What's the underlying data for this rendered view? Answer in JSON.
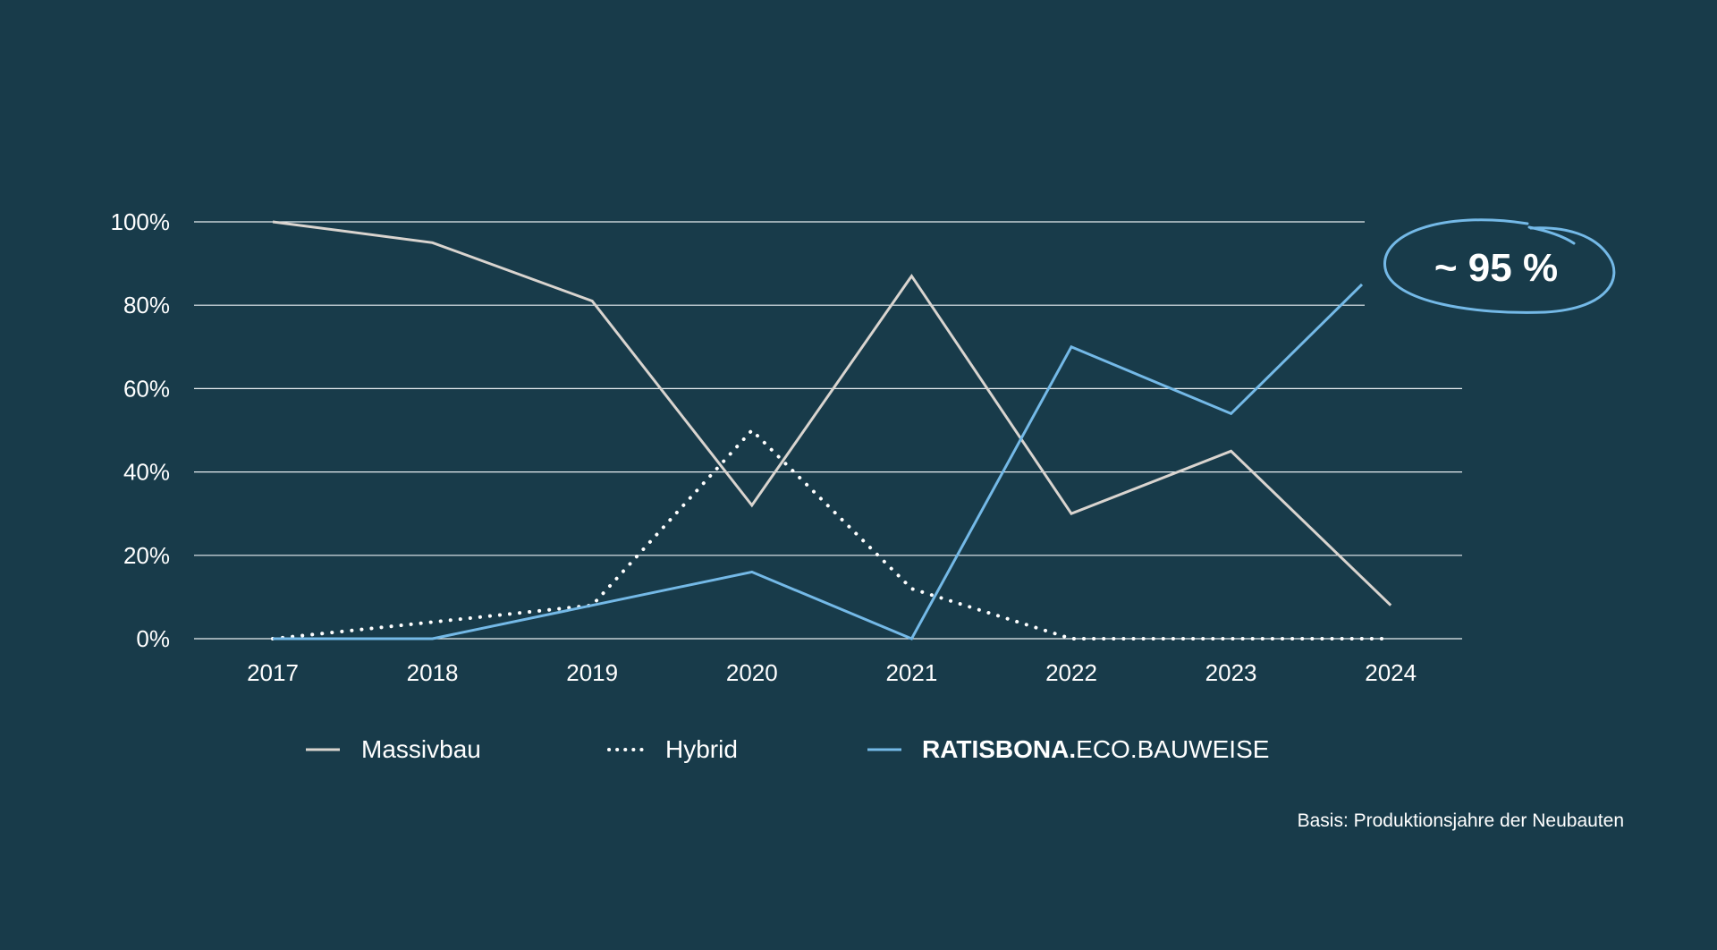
{
  "chart_data": {
    "type": "line",
    "categories": [
      "2017",
      "2018",
      "2019",
      "2020",
      "2021",
      "2022",
      "2023",
      "2024"
    ],
    "y_ticks": [
      "0%",
      "20%",
      "40%",
      "60%",
      "80%",
      "100%"
    ],
    "ylim": [
      0,
      100
    ],
    "grid": true,
    "legend_position": "bottom",
    "series": [
      {
        "name": "Massivbau",
        "values": [
          100,
          95,
          81,
          32,
          87,
          30,
          45,
          8
        ],
        "color": "#d9d4cf",
        "style": "solid"
      },
      {
        "name": "Hybrid",
        "values": [
          0,
          4,
          8,
          50,
          12,
          0,
          0,
          0
        ],
        "color": "#ffffff",
        "style": "dotted"
      },
      {
        "name_bold": "RATISBONA.",
        "name_rest": "ECO.BAUWEISE",
        "values": [
          0,
          0,
          8,
          16,
          0,
          70,
          54,
          85
        ],
        "color": "#74b9e7",
        "style": "solid"
      }
    ],
    "annotation": {
      "text": "~ 95 %",
      "color": "#74b9e7"
    }
  },
  "footnote": "Basis: Produktionsjahre der Neubauten"
}
